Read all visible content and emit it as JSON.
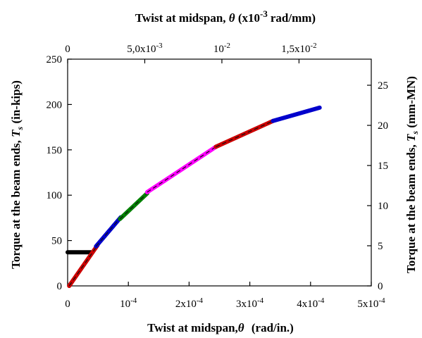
{
  "chart_data": {
    "type": "line",
    "x_bottom": {
      "label_main": "Twist at midspan,",
      "label_symbol": "θ",
      "label_units": "(rad/in.)",
      "ticks": [
        {
          "value": 0,
          "base": "0",
          "exp": ""
        },
        {
          "value": 0.0001,
          "base": "10",
          "exp": "-4"
        },
        {
          "value": 0.0002,
          "base": "2x10",
          "exp": "-4"
        },
        {
          "value": 0.0003,
          "base": "3x10",
          "exp": "-4"
        },
        {
          "value": 0.0004,
          "base": "4x10",
          "exp": "-4"
        },
        {
          "value": 0.0005,
          "base": "5x10",
          "exp": "-4"
        }
      ],
      "range": [
        0,
        0.0005
      ]
    },
    "x_top": {
      "label_main": "Twist at midspan,",
      "label_symbol": "θ",
      "label_units_pre": "(x10",
      "label_units_exp": "-3",
      "label_units_post": "rad/mm)",
      "ticks": [
        {
          "value": 0,
          "base": "0",
          "exp": ""
        },
        {
          "value": 0.005,
          "base": "5,0x10",
          "exp": "-3"
        },
        {
          "value": 0.01,
          "base": "10",
          "exp": "-2"
        },
        {
          "value": 0.015,
          "base": "1,5x10",
          "exp": "-2"
        }
      ]
    },
    "y_left": {
      "label_main": "Torque at the beam ends,",
      "label_symbol": "T",
      "label_sub": "s",
      "label_units": "(in-kips)",
      "ticks": [
        "0",
        "50",
        "100",
        "150",
        "200",
        "250"
      ],
      "range": [
        0,
        250
      ]
    },
    "y_right": {
      "label_main": "Torque at the beam ends,",
      "label_symbol": "T",
      "label_sub": "s",
      "label_units": "(mm-MN)",
      "ticks": [
        "0",
        "5",
        "10",
        "15",
        "20",
        "25"
      ],
      "range": [
        0,
        28.25
      ]
    },
    "grid": false,
    "legend": "none",
    "series": [
      {
        "color": "#000000",
        "dashed": false,
        "points": [
          [
            0,
            37
          ],
          [
            3.8e-05,
            37
          ]
        ]
      },
      {
        "color": "#cc0000",
        "dashed": true,
        "points": [
          [
            2.5e-06,
            0
          ],
          [
            4.92e-05,
            44.8
          ]
        ]
      },
      {
        "color": "#0000cc",
        "dashed": true,
        "points": [
          [
            4.67e-05,
            43.6
          ],
          [
            8.75e-05,
            75.6
          ]
        ]
      },
      {
        "color": "#008000",
        "dashed": true,
        "points": [
          [
            8.62e-05,
            73.8
          ],
          [
            0.000131,
            102
          ]
        ]
      },
      {
        "color": "#ff00ff",
        "dashed": true,
        "points": [
          [
            0.000131,
            103.3
          ],
          [
            0.000245,
            153.7
          ]
        ]
      },
      {
        "color": "#cc0000",
        "dashed": true,
        "points": [
          [
            0.000244,
            153.3
          ],
          [
            0.000338,
            181.8
          ]
        ]
      },
      {
        "color": "#0000cc",
        "dashed": false,
        "points": [
          [
            0.000338,
            181.8
          ],
          [
            0.000415,
            196.5
          ]
        ]
      }
    ]
  }
}
